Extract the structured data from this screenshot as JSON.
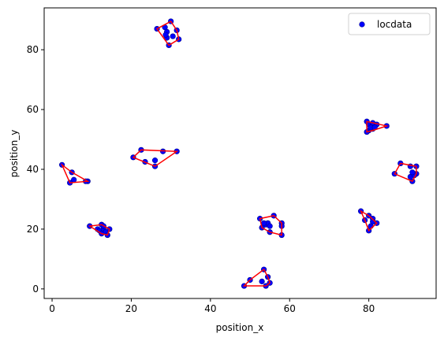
{
  "chart_data": {
    "type": "scatter",
    "xlabel": "position_x",
    "ylabel": "position_y",
    "xlim": [
      -2,
      97
    ],
    "ylim": [
      -3.2,
      94
    ],
    "xticks": [
      0,
      20,
      40,
      60,
      80
    ],
    "yticks": [
      0,
      20,
      40,
      60,
      80
    ],
    "legend": "upper right",
    "series": [
      {
        "name": "locdata",
        "color": "#0000ff",
        "x": [
          26.5,
          28.5,
          29,
          30,
          31.5,
          30.5,
          29,
          32,
          29.5,
          28.7,
          79.5,
          80,
          81,
          82,
          84.5,
          80,
          81,
          79.5,
          80.5,
          81.5,
          2.5,
          5,
          5.5,
          4.5,
          9,
          8.5,
          20.5,
          22.5,
          28,
          31.5,
          23.5,
          26,
          26,
          86.5,
          88,
          92,
          92,
          91,
          90.5,
          91.5,
          90.5,
          91,
          9.5,
          12.5,
          11.5,
          12,
          13,
          13.5,
          14.5,
          14,
          12.5,
          13,
          52.5,
          56,
          58,
          58,
          58,
          55,
          53,
          54,
          54.5,
          55,
          53.5,
          78,
          79,
          80,
          81,
          82,
          80,
          80.5,
          81,
          48.5,
          50,
          53.5,
          54.5,
          55,
          53,
          54
        ],
        "y": [
          87,
          87.5,
          86,
          89.5,
          86.5,
          84.5,
          84,
          83.5,
          81.5,
          85,
          56,
          55,
          55.5,
          55,
          54.5,
          53,
          53.5,
          52.5,
          54,
          54,
          41.5,
          39,
          36.5,
          35.5,
          36,
          36,
          44,
          46.5,
          46,
          46,
          42.5,
          41,
          43,
          38.5,
          42,
          41,
          38.5,
          36,
          37.5,
          38,
          41,
          39,
          21,
          21.5,
          20,
          19.5,
          20,
          19,
          20,
          18,
          18.5,
          21,
          23.5,
          24.5,
          22,
          21,
          18,
          19,
          20.5,
          21.5,
          22,
          21,
          22,
          26,
          23,
          24.5,
          23.5,
          22,
          19.5,
          21,
          22.5,
          1,
          3,
          6.5,
          4,
          2,
          2.5,
          1
        ]
      }
    ],
    "hull_color": "#ff0000",
    "hulls": [
      {
        "x": [
          26.5,
          30,
          31.5,
          32,
          29.5
        ],
        "y": [
          87,
          89.5,
          86.5,
          83.5,
          81.5
        ]
      },
      {
        "x": [
          79.5,
          84.5,
          81,
          79.5
        ],
        "y": [
          56,
          54.5,
          53,
          52.5
        ]
      },
      {
        "x": [
          2.5,
          5,
          9,
          4.5
        ],
        "y": [
          41.5,
          39,
          36,
          35.5
        ]
      },
      {
        "x": [
          20.5,
          22.5,
          31.5,
          26
        ],
        "y": [
          44,
          46.5,
          46,
          41
        ]
      },
      {
        "x": [
          86.5,
          88,
          92,
          92,
          91
        ],
        "y": [
          38.5,
          42,
          41,
          38.5,
          36
        ]
      },
      {
        "x": [
          9.5,
          12.5,
          14.5,
          14,
          12.5
        ],
        "y": [
          21,
          21.5,
          20,
          18,
          18.5
        ]
      },
      {
        "x": [
          52.5,
          56,
          58,
          58,
          55,
          53
        ],
        "y": [
          23.5,
          24.5,
          22,
          18,
          19,
          20.5
        ]
      },
      {
        "x": [
          78,
          80,
          82,
          80,
          79
        ],
        "y": [
          26,
          24.5,
          22,
          19.5,
          23
        ]
      },
      {
        "x": [
          48.5,
          50,
          53.5,
          54.5,
          55,
          54
        ],
        "y": [
          1,
          3,
          6.5,
          4,
          2,
          1
        ]
      }
    ]
  }
}
